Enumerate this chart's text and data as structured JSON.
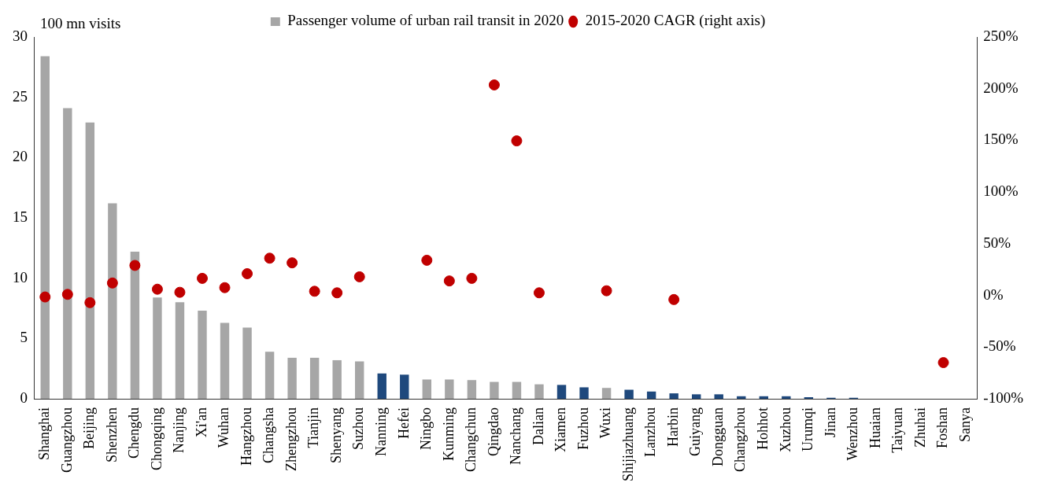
{
  "chart_data": {
    "type": "bar",
    "ylabel": "100 mn visits",
    "categories": [
      "Shanghai",
      "Guangzhou",
      "Beijing",
      "Shenzhen",
      "Chengdu",
      "Chongqing",
      "Nanjing",
      "Xi'an",
      "Wuhan",
      "Hangzhou",
      "Changsha",
      "Zhengzhou",
      "Tianjin",
      "Shenyang",
      "Suzhou",
      "Nanning",
      "Hefei",
      "Ningbo",
      "Kunming",
      "Changchun",
      "Qingdao",
      "Nanchang",
      "Dalian",
      "Xiamen",
      "Fuzhou",
      "Wuxi",
      "Shijiazhuang",
      "Lanzhou",
      "Harbin",
      "Guiyang",
      "Dongguan",
      "Changzhou",
      "Hohhot",
      "Xuzhou",
      "Urumqi",
      "Jinan",
      "Wenzhou",
      "Huaian",
      "Taiyuan",
      "Zhuhai",
      "Foshan",
      "Sanya"
    ],
    "series": [
      {
        "name": "Passenger volume of urban rail transit in 2020",
        "color": "#a6a6a6",
        "colors": [
          "#a6a6a6",
          "#a6a6a6",
          "#a6a6a6",
          "#a6a6a6",
          "#a6a6a6",
          "#a6a6a6",
          "#a6a6a6",
          "#a6a6a6",
          "#a6a6a6",
          "#a6a6a6",
          "#a6a6a6",
          "#a6a6a6",
          "#a6a6a6",
          "#a6a6a6",
          "#a6a6a6",
          "#1f497d",
          "#1f497d",
          "#a6a6a6",
          "#a6a6a6",
          "#a6a6a6",
          "#a6a6a6",
          "#a6a6a6",
          "#a6a6a6",
          "#1f497d",
          "#1f497d",
          "#a6a6a6",
          "#1f497d",
          "#1f497d",
          "#1f497d",
          "#1f497d",
          "#1f497d",
          "#1f497d",
          "#1f497d",
          "#1f497d",
          "#1f497d",
          "#1f497d",
          "#1f497d",
          "#1f497d",
          "#1f497d",
          "#1f497d",
          "#1f497d",
          "#1f497d"
        ],
        "values": [
          28.4,
          24.1,
          22.9,
          16.2,
          12.2,
          8.4,
          8.0,
          7.3,
          6.3,
          5.9,
          3.9,
          3.4,
          3.4,
          3.2,
          3.1,
          2.1,
          2.0,
          1.6,
          1.6,
          1.55,
          1.4,
          1.4,
          1.2,
          1.15,
          0.95,
          0.9,
          0.75,
          0.6,
          0.45,
          0.37,
          0.37,
          0.21,
          0.21,
          0.21,
          0.13,
          0.08,
          0.08,
          0,
          0,
          0,
          0,
          0
        ]
      },
      {
        "name": "2015-2020 CAGR (right axis)",
        "type": "scatter",
        "axis": "y2",
        "color": "#c00000",
        "values": [
          -1.5,
          1,
          -7,
          12,
          29,
          6,
          3,
          16.5,
          7.5,
          21,
          36,
          31.5,
          4,
          2.5,
          18,
          null,
          null,
          34,
          14,
          16.5,
          203.6,
          149.5,
          2.5,
          null,
          null,
          4.5,
          null,
          null,
          -4,
          null,
          null,
          null,
          null,
          null,
          null,
          null,
          null,
          null,
          null,
          null,
          -65,
          null
        ]
      }
    ],
    "ylim": [
      0,
      30
    ],
    "yticks": [
      0,
      5,
      10,
      15,
      20,
      25,
      30
    ],
    "y2lim": [
      -100,
      250
    ],
    "y2ticks": [
      {
        "value": -100,
        "label": "-100%"
      },
      {
        "value": -50,
        "label": "-50%"
      },
      {
        "value": 0,
        "label": "0%"
      },
      {
        "value": 50,
        "label": "50%"
      },
      {
        "value": 100,
        "label": "100%"
      },
      {
        "value": 150,
        "label": "150%"
      },
      {
        "value": 200,
        "label": "200%"
      },
      {
        "value": 250,
        "label": "250%"
      }
    ],
    "legend": "top",
    "marker": "circle",
    "grid": false
  }
}
